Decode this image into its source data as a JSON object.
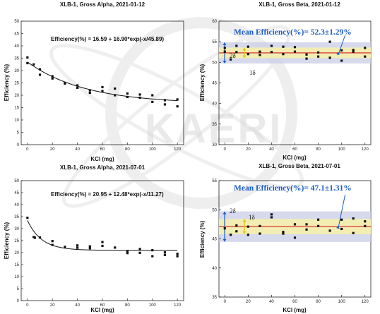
{
  "watermark": "KAERI",
  "chart_data": [
    {
      "type": "scatter",
      "title": "XLB-1, Gross Alpha, 2021-01-12",
      "xlabel": "KCl (mg)",
      "ylabel": "Efficiency (%)",
      "xlim": [
        -5,
        125
      ],
      "ylim": [
        0,
        50
      ],
      "xticks": [
        0,
        20,
        40,
        60,
        80,
        100,
        120
      ],
      "yticks": [
        0,
        5,
        10,
        15,
        20,
        25,
        30,
        35,
        40,
        45,
        50
      ],
      "grid": false,
      "equation": "Efficiency(%) = 16.59 + 16.90*exp(-x/45.89)",
      "fit": {
        "a": 16.59,
        "b": 16.9,
        "t": 45.89
      },
      "points": [
        [
          0,
          35.3
        ],
        [
          0,
          33.0
        ],
        [
          5,
          32.5
        ],
        [
          10,
          30.5
        ],
        [
          10,
          28.3
        ],
        [
          20,
          27.7
        ],
        [
          20,
          26.8
        ],
        [
          30,
          25.0
        ],
        [
          30,
          24.7
        ],
        [
          40,
          24.0
        ],
        [
          40,
          23.0
        ],
        [
          50,
          22.0
        ],
        [
          50,
          21.0
        ],
        [
          60,
          23.3
        ],
        [
          60,
          21.7
        ],
        [
          70,
          22.7
        ],
        [
          70,
          20.0
        ],
        [
          80,
          20.7
        ],
        [
          80,
          19.3
        ],
        [
          90,
          19.0
        ],
        [
          90,
          20.3
        ],
        [
          100,
          20.0
        ],
        [
          100,
          17.3
        ],
        [
          110,
          18.0
        ],
        [
          110,
          16.3
        ],
        [
          120,
          18.3
        ],
        [
          120,
          15.5
        ]
      ]
    },
    {
      "type": "scatter",
      "title": "XLB-1, Gross Beta, 2021-01-12",
      "xlabel": "KCl (mg)",
      "ylabel": "Efficiency (%)",
      "xlim": [
        -5,
        125
      ],
      "ylim": [
        30,
        60
      ],
      "xticks": [
        0,
        20,
        40,
        60,
        80,
        100,
        120
      ],
      "yticks": [
        30,
        35,
        40,
        45,
        50,
        55,
        60
      ],
      "grid": false,
      "mean_label": "Mean Efficiency(%)=  52.3±1.29%",
      "mean": 52.3,
      "sd": 1.29,
      "band_labels": {
        "two_sigma": "2δ",
        "one_sigma": "1δ"
      },
      "points": [
        [
          0,
          53.5
        ],
        [
          0,
          52.6
        ],
        [
          5,
          50.7
        ],
        [
          10,
          54.0
        ],
        [
          10,
          52.5
        ],
        [
          20,
          53.8
        ],
        [
          20,
          52.0
        ],
        [
          30,
          52.6
        ],
        [
          30,
          51.8
        ],
        [
          40,
          54.0
        ],
        [
          40,
          52.5
        ],
        [
          50,
          53.8
        ],
        [
          50,
          52.0
        ],
        [
          60,
          53.7
        ],
        [
          60,
          52.6
        ],
        [
          70,
          51.9
        ],
        [
          70,
          50.9
        ],
        [
          80,
          52.4
        ],
        [
          80,
          51.4
        ],
        [
          90,
          55.0
        ],
        [
          90,
          51.1
        ],
        [
          100,
          52.9
        ],
        [
          100,
          50.4
        ],
        [
          110,
          53.0
        ],
        [
          110,
          52.6
        ],
        [
          120,
          53.5
        ],
        [
          120,
          51.4
        ]
      ]
    },
    {
      "type": "scatter",
      "title": "XLB-1, Gross Alpha, 2021-07-01",
      "xlabel": "KCl (mg)",
      "ylabel": "Efficiency (%)",
      "xlim": [
        -5,
        125
      ],
      "ylim": [
        0,
        50
      ],
      "xticks": [
        0,
        20,
        40,
        60,
        80,
        100,
        120
      ],
      "yticks": [
        0,
        5,
        10,
        15,
        20,
        25,
        30,
        35,
        40,
        45,
        50
      ],
      "grid": false,
      "equation": "Efficiency(%) = 20.95 + 12.48*exp(-x/11.27)",
      "fit": {
        "a": 20.95,
        "b": 12.48,
        "t": 11.27
      },
      "points": [
        [
          0,
          34.5
        ],
        [
          5,
          26.5
        ],
        [
          6,
          26.2
        ],
        [
          10,
          26.3
        ],
        [
          20,
          24.8
        ],
        [
          20,
          23.2
        ],
        [
          30,
          22.4
        ],
        [
          40,
          23.0
        ],
        [
          40,
          22.0
        ],
        [
          50,
          22.6
        ],
        [
          50,
          21.8
        ],
        [
          60,
          24.4
        ],
        [
          60,
          22.8
        ],
        [
          70,
          22.1
        ],
        [
          80,
          20.6
        ],
        [
          80,
          19.8
        ],
        [
          90,
          21.5
        ],
        [
          90,
          19.9
        ],
        [
          100,
          21.0
        ],
        [
          100,
          18.5
        ],
        [
          110,
          20.1
        ],
        [
          110,
          19.0
        ],
        [
          120,
          19.5
        ],
        [
          120,
          18.5
        ]
      ]
    },
    {
      "type": "scatter",
      "title": "XLB-1, Gross Beta, 2021-07-01",
      "xlabel": "KCl (mg)",
      "ylabel": "Efficiency (%)",
      "xlim": [
        -5,
        125
      ],
      "ylim": [
        35,
        55
      ],
      "xticks": [
        0,
        20,
        40,
        60,
        80,
        100,
        120
      ],
      "yticks": [
        35,
        40,
        45,
        50,
        55
      ],
      "grid": false,
      "mean_label": "Mean Efficiency(%)=  47.1±1.31%",
      "mean": 47.1,
      "sd": 1.31,
      "band_labels": {
        "two_sigma": "2δ",
        "one_sigma": "1δ"
      },
      "points": [
        [
          0,
          46.8
        ],
        [
          5,
          45.7
        ],
        [
          10,
          46.3
        ],
        [
          10,
          47.3
        ],
        [
          20,
          45.7
        ],
        [
          20,
          47.1
        ],
        [
          30,
          45.9
        ],
        [
          30,
          47.2
        ],
        [
          40,
          48.7
        ],
        [
          40,
          49.2
        ],
        [
          50,
          46.2
        ],
        [
          50,
          45.9
        ],
        [
          60,
          47.5
        ],
        [
          60,
          45.2
        ],
        [
          70,
          47.5
        ],
        [
          70,
          46.6
        ],
        [
          80,
          48.3
        ],
        [
          80,
          47.2
        ],
        [
          90,
          46.4
        ],
        [
          100,
          48.3
        ],
        [
          100,
          46.7
        ],
        [
          110,
          48.5
        ],
        [
          110,
          46.0
        ],
        [
          120,
          48.0
        ],
        [
          120,
          47.2
        ]
      ]
    }
  ]
}
